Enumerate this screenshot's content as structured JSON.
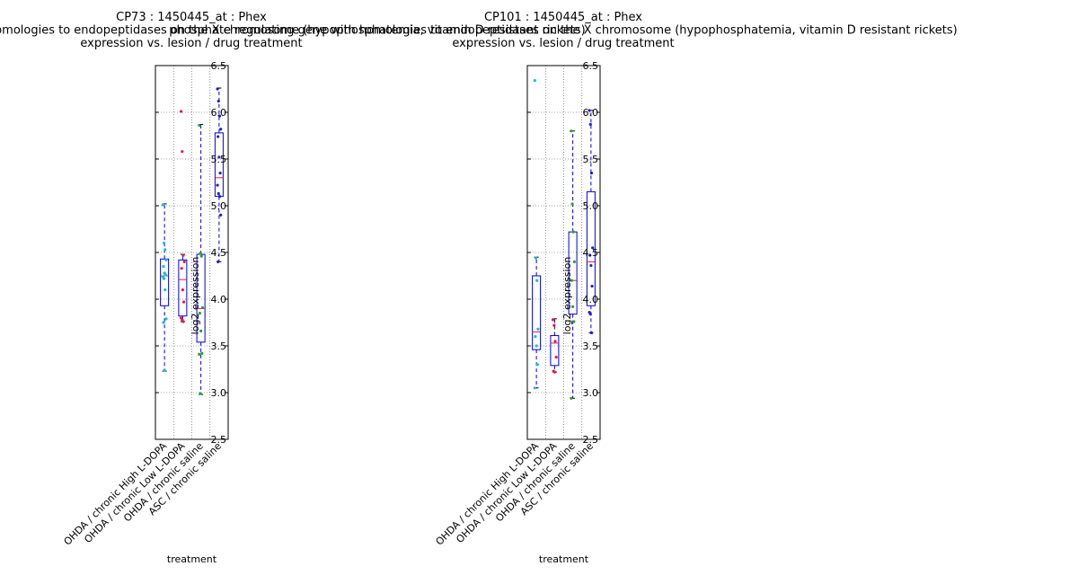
{
  "chart_data": [
    {
      "type": "box",
      "title_lines": [
        "CP73 : 1450445_at : Phex",
        "phosphate regulating gene with homologies to endopeptidases on the X chromosome (hypophosphatemia, vitamin D resistant rickets)",
        "expression vs. lesion / drug treatment"
      ],
      "xlabel": "treatment",
      "ylabel": "log2 expression",
      "ylim": [
        2.5,
        6.5
      ],
      "yticks": [
        "2.5",
        "3.0",
        "3.5",
        "4.0",
        "4.5",
        "5.0",
        "5.5",
        "6.0",
        "6.5"
      ],
      "grid": true,
      "categories": [
        "OHDA / chronic High L-DOPA",
        "OHDA / chronic Low L-DOPA",
        "OHDA / chronic saline",
        "ASC / chronic saline"
      ],
      "series": [
        {
          "color": "#17becf",
          "q1": 3.93,
          "median": 4.25,
          "q3": 4.43,
          "whisker_low": 3.23,
          "whisker_high": 5.02,
          "points": [
            5.01,
            4.6,
            4.53,
            4.42,
            4.35,
            4.28,
            4.26,
            4.24,
            4.22,
            4.1,
            3.79,
            3.75,
            3.24
          ]
        },
        {
          "color": "#e6194b",
          "q1": 3.82,
          "median": 4.21,
          "q3": 4.42,
          "whisker_low": 3.76,
          "whisker_high": 4.48,
          "points": [
            6.01,
            5.58,
            4.47,
            4.4,
            4.33,
            4.1,
            3.97,
            3.8,
            3.78,
            3.76
          ]
        },
        {
          "color": "#2ca02c",
          "q1": 3.54,
          "median": 3.9,
          "q3": 4.48,
          "whisker_low": 2.98,
          "whisker_high": 5.87,
          "points": [
            5.86,
            4.49,
            4.46,
            3.91,
            3.85,
            3.66,
            3.42,
            3.41,
            2.99
          ]
        },
        {
          "color": "#1f1fcf",
          "q1": 5.1,
          "median": 5.3,
          "q3": 5.78,
          "whisker_low": 4.4,
          "whisker_high": 6.26,
          "points": [
            6.25,
            6.12,
            5.96,
            5.82,
            5.74,
            5.52,
            5.35,
            5.22,
            5.13,
            5.1,
            4.9,
            4.4
          ]
        }
      ]
    },
    {
      "type": "box",
      "title_lines": [
        "CP101 : 1450445_at : Phex",
        "phosphate regulating gene with homologies to endopeptidases on the X chromosome (hypophosphatemia, vitamin D resistant rickets)",
        "expression vs. lesion / drug treatment"
      ],
      "xlabel": "treatment",
      "ylabel": "log2 expression",
      "ylim": [
        2.5,
        6.5
      ],
      "yticks": [
        "2.5",
        "3.0",
        "3.5",
        "4.0",
        "4.5",
        "5.0",
        "5.5",
        "6.0",
        "6.5"
      ],
      "grid": true,
      "categories": [
        "OHDA / chronic High L-DOPA",
        "OHDA / chronic Low L-DOPA",
        "OHDA / chronic saline",
        "ASC / chronic saline"
      ],
      "series": [
        {
          "color": "#17becf",
          "q1": 3.46,
          "median": 3.65,
          "q3": 4.25,
          "whisker_low": 3.05,
          "whisker_high": 4.45,
          "points": [
            6.34,
            4.44,
            4.2,
            3.68,
            3.6,
            3.5,
            3.3,
            3.05
          ]
        },
        {
          "color": "#e6194b",
          "q1": 3.29,
          "median": 3.53,
          "q3": 3.61,
          "whisker_low": 3.22,
          "whisker_high": 3.79,
          "points": [
            3.78,
            3.72,
            3.55,
            3.38,
            3.23,
            3.22
          ]
        },
        {
          "color": "#2ca02c",
          "q1": 3.84,
          "median": 4.2,
          "q3": 4.72,
          "whisker_low": 2.94,
          "whisker_high": 5.8,
          "points": [
            5.8,
            5.02,
            4.72,
            4.4,
            4.2,
            3.92,
            3.76,
            2.94
          ]
        },
        {
          "color": "#1f1fcf",
          "q1": 3.93,
          "median": 4.4,
          "q3": 5.15,
          "whisker_low": 3.64,
          "whisker_high": 6.02,
          "points": [
            6.02,
            5.87,
            5.35,
            4.55,
            4.47,
            4.36,
            4.14,
            3.86,
            3.84,
            3.64
          ]
        }
      ]
    }
  ]
}
